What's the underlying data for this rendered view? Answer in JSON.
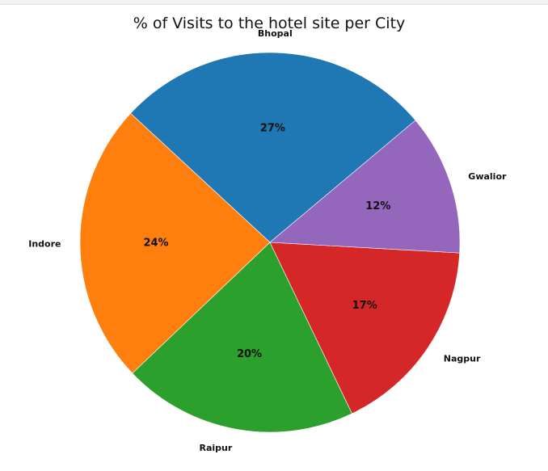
{
  "chart_data": {
    "type": "pie",
    "title": "% of Visits to the hotel site per City",
    "categories": [
      "Bhopal",
      "Indore",
      "Raipur",
      "Nagpur",
      "Gwalior"
    ],
    "values": [
      27,
      24,
      20,
      17,
      12
    ],
    "value_labels": [
      "27%",
      "24%",
      "20%",
      "17%",
      "12%"
    ],
    "colors": [
      "#1f77b4",
      "#ff7f0e",
      "#2ca02c",
      "#d62728",
      "#9467bd"
    ],
    "start_angle_deg": 40,
    "direction": "counterclockwise",
    "legend": "none"
  }
}
